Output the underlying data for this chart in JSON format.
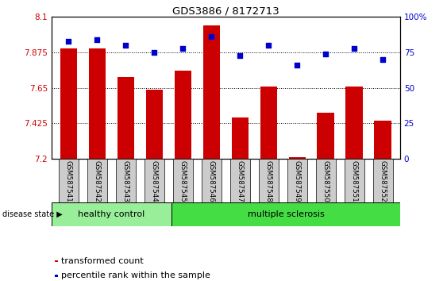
{
  "title": "GDS3886 / 8172713",
  "samples": [
    "GSM587541",
    "GSM587542",
    "GSM587543",
    "GSM587544",
    "GSM587545",
    "GSM587546",
    "GSM587547",
    "GSM587548",
    "GSM587549",
    "GSM587550",
    "GSM587551",
    "GSM587552"
  ],
  "transformed_counts": [
    7.9,
    7.9,
    7.72,
    7.64,
    7.76,
    8.045,
    7.46,
    7.66,
    7.21,
    7.49,
    7.66,
    7.44
  ],
  "percentile_ranks": [
    83,
    84,
    80,
    75,
    78,
    86,
    73,
    80,
    66,
    74,
    78,
    70
  ],
  "ylim_left": [
    7.2,
    8.1
  ],
  "ylim_right": [
    0,
    100
  ],
  "yticks_left": [
    7.2,
    7.425,
    7.65,
    7.875,
    8.1
  ],
  "ytick_labels_left": [
    "7.2",
    "7.425",
    "7.65",
    "7.875",
    "8.1"
  ],
  "yticks_right": [
    0,
    25,
    50,
    75,
    100
  ],
  "ytick_labels_right": [
    "0",
    "25",
    "50",
    "75",
    "100%"
  ],
  "bar_color": "#cc0000",
  "dot_color": "#0000cc",
  "grid_lines": [
    7.425,
    7.65,
    7.875
  ],
  "healthy_control_count": 4,
  "group1_label": "healthy control",
  "group2_label": "multiple sclerosis",
  "group1_color": "#99ee99",
  "group2_color": "#44dd44",
  "xticklabel_bg": "#cccccc",
  "disease_state_label": "disease state",
  "legend_bar_label": "transformed count",
  "legend_dot_label": "percentile rank within the sample",
  "bar_width": 0.6
}
